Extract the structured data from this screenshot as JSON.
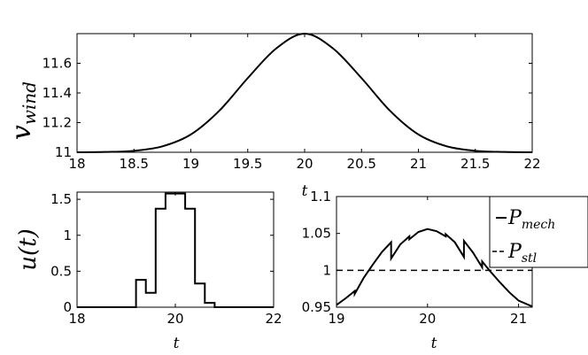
{
  "chart_data": [
    {
      "type": "line",
      "title": "",
      "ylabel": "v",
      "ylabel_subscript": "wind",
      "xlabel": "t",
      "xlim": [
        18,
        22
      ],
      "ylim": [
        11,
        11.8
      ],
      "xticks": [
        "18",
        "18.5",
        "19",
        "19.5",
        "20",
        "20.5",
        "21",
        "21.5",
        "22"
      ],
      "yticks": [
        "11",
        "11.2",
        "11.4",
        "11.6"
      ],
      "series": [
        {
          "color": "#000000",
          "x": [
            18.0,
            18.25,
            18.5,
            18.75,
            19.0,
            19.25,
            19.5,
            19.75,
            20.0,
            20.25,
            20.5,
            20.75,
            21.0,
            21.25,
            21.5,
            21.75,
            22.0
          ],
          "y": [
            11.0,
            11.002,
            11.01,
            11.04,
            11.12,
            11.28,
            11.5,
            11.7,
            11.8,
            11.7,
            11.5,
            11.28,
            11.12,
            11.04,
            11.01,
            11.002,
            11.0
          ]
        }
      ]
    },
    {
      "type": "line",
      "title": "",
      "ylabel": "u(t)",
      "xlabel": "t",
      "xlim": [
        18,
        22
      ],
      "ylim": [
        0,
        1.6
      ],
      "xticks": [
        "18",
        "20",
        "22"
      ],
      "yticks": [
        "0",
        "0.5",
        "1",
        "1.5"
      ],
      "series": [
        {
          "color": "#000000",
          "x": [
            18.0,
            19.2,
            19.2,
            19.4,
            19.4,
            19.6,
            19.6,
            19.8,
            19.8,
            20.2,
            20.2,
            20.4,
            20.4,
            20.6,
            20.6,
            20.8,
            20.8,
            22.0
          ],
          "y": [
            0,
            0,
            0.38,
            0.38,
            0.2,
            0.2,
            1.37,
            1.37,
            1.58,
            1.58,
            1.37,
            1.37,
            0.33,
            0.33,
            0.06,
            0.06,
            0,
            0
          ]
        }
      ]
    },
    {
      "type": "line",
      "title": "",
      "ylabel": "",
      "xlabel": "t",
      "xlim": [
        19,
        21.15
      ],
      "ylim": [
        0.95,
        1.1
      ],
      "xticks": [
        "19",
        "20",
        "21"
      ],
      "yticks": [
        "0.95",
        "1",
        "1.05",
        "1.1"
      ],
      "legend": "top-right",
      "series": [
        {
          "name": "P",
          "name_subscript": "mech",
          "color": "#000000",
          "dash": "solid",
          "x": [
            19.0,
            19.1,
            19.2,
            19.2,
            19.3,
            19.4,
            19.5,
            19.6,
            19.6,
            19.7,
            19.8,
            19.8,
            19.9,
            20.0,
            20.1,
            20.2,
            20.2,
            20.3,
            20.4,
            20.4,
            20.5,
            20.6,
            20.6,
            20.7,
            20.8,
            20.9,
            21.0,
            21.15
          ],
          "y": [
            0.953,
            0.962,
            0.972,
            0.968,
            0.99,
            1.008,
            1.025,
            1.038,
            1.016,
            1.035,
            1.046,
            1.042,
            1.052,
            1.056,
            1.053,
            1.046,
            1.049,
            1.038,
            1.018,
            1.04,
            1.024,
            1.004,
            1.012,
            0.997,
            0.983,
            0.97,
            0.959,
            0.951
          ]
        },
        {
          "name": "P",
          "name_subscript": "stl",
          "color": "#000000",
          "dash": "dashed",
          "x": [
            19.0,
            21.15
          ],
          "y": [
            1.0,
            1.0
          ]
        }
      ]
    }
  ]
}
